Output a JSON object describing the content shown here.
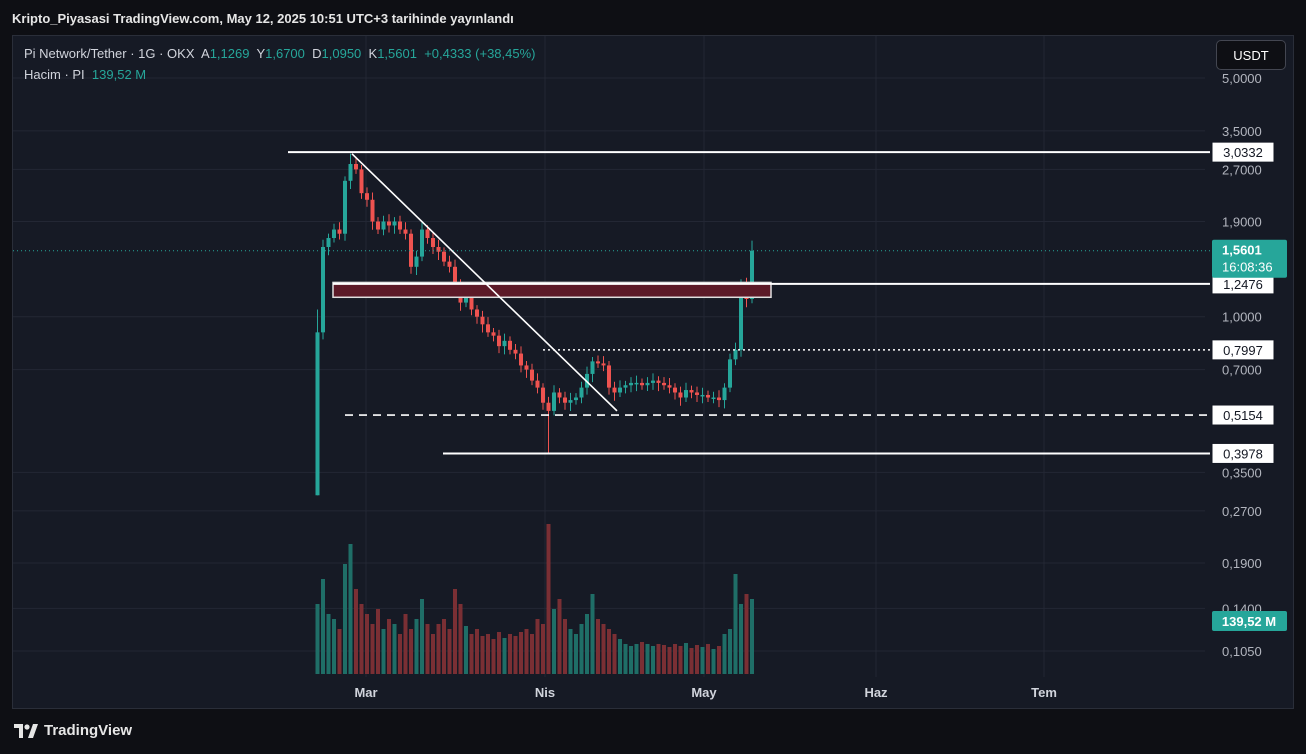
{
  "caption": "Kripto_Piyasasi TradingView.com, May 12, 2025 10:51 UTC+3 tarihinde yayınlandı",
  "legend": {
    "symbol": "Pi Network/Tether · 1G · OKX",
    "open_label": "A",
    "open": "1,1269",
    "high_label": "Y",
    "high": "1,6700",
    "low_label": "D",
    "low": "1,0950",
    "close_label": "K",
    "close": "1,5601",
    "change": "+0,4333 (+38,45%)",
    "volume_label": "Hacim · PI",
    "volume": "139,52 M"
  },
  "currency_button": "USDT",
  "footer": {
    "brand": "TradingView"
  },
  "chart_data": {
    "type": "candlestick",
    "scale": "log",
    "price_axis_ticks": [
      "5,0000",
      "3,5000",
      "2,7000",
      "1,9000",
      "1,0000",
      "0,7000",
      "0,3500",
      "0,2700",
      "0,1900",
      "0,1400",
      "0,1050"
    ],
    "time_axis_ticks": [
      "Mar",
      "Nis",
      "May",
      "Haz",
      "Tem"
    ],
    "last_price": {
      "price": "1,5601",
      "countdown": "16:08:36"
    },
    "volume_badge": "139,52 M",
    "horizontal_levels": [
      {
        "price": "3,0332",
        "style": "solid"
      },
      {
        "price": "1,2476",
        "style": "solid"
      },
      {
        "price": "0,7997",
        "style": "dotted"
      },
      {
        "price": "0,5154",
        "style": "dashed"
      },
      {
        "price": "0,3978",
        "style": "solid"
      }
    ],
    "zone": {
      "price_top": 1.26,
      "price_bottom": 1.14,
      "color": "#5c1a28"
    },
    "trendline": {
      "from_price": 3.0,
      "to_price": 0.53
    },
    "colors": {
      "up": "#26a69a",
      "down": "#ef5350",
      "background": "#161a25"
    },
    "candles_summary": {
      "start": "late February 2025",
      "end": "May 12, 2025",
      "peak_high": 3.0,
      "trough_low": 0.4,
      "last": {
        "open": 1.1269,
        "high": 1.67,
        "low": 1.095,
        "close": 1.5601
      }
    }
  }
}
